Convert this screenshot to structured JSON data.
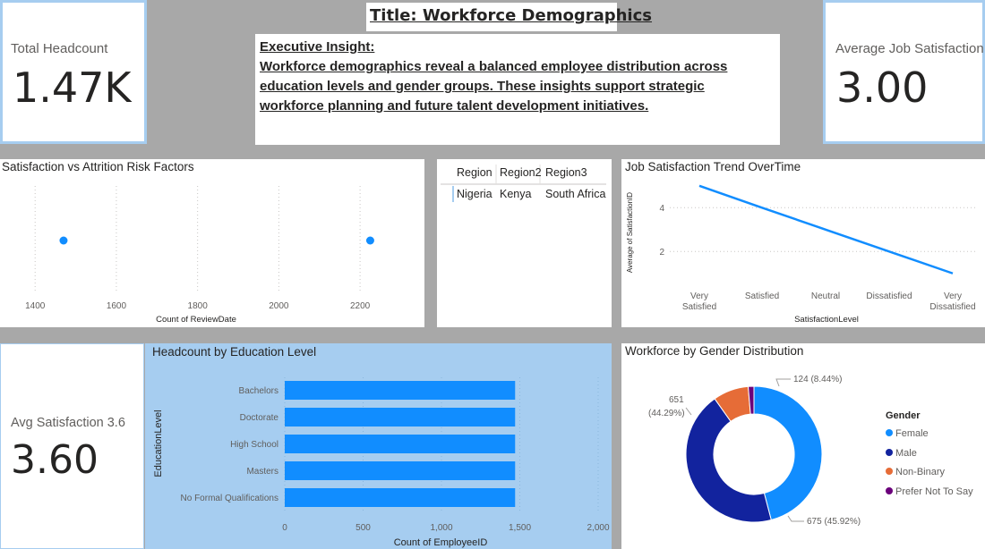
{
  "title": "Title: Workforce Demographics",
  "insight": {
    "heading": "Executive Insight:",
    "lines": [
      "Workforce demographics reveal a balanced employee distribution across",
      "education levels and gender groups. These insights support strategic",
      "workforce planning and future talent development initiatives."
    ]
  },
  "kpis": {
    "total_headcount": {
      "label": "Total Headcount",
      "value": "1.47K"
    },
    "avg_job_satisfaction": {
      "label": "Average Job Satisfaction",
      "value": "3.00"
    },
    "avg_satisfaction": {
      "label": "Avg Satisfaction 3.6",
      "value": "3.60"
    }
  },
  "region_table": {
    "headers": [
      "Region",
      "Region2",
      "Region3"
    ],
    "row": [
      "Nigeria",
      "Kenya",
      "South Africa"
    ]
  },
  "colors": {
    "primary": "#118dff",
    "dark_blue": "#12239e",
    "orange": "#e66c37",
    "purple": "#6b007b",
    "kpi_border": "#a6cdf0",
    "education_bg": "#a6cdf0"
  },
  "chart_data": [
    {
      "type": "scatter",
      "title": "Satisfaction vs Attrition Risk Factors",
      "xlabel": "Count of ReviewDate",
      "ylabel": "",
      "xticks": [
        "1400",
        "1600",
        "1800",
        "2000",
        "2200"
      ],
      "xlim": [
        1340,
        2310
      ],
      "points": [
        {
          "x": 1470
        },
        {
          "x": 2225
        }
      ],
      "grid": "vertical"
    },
    {
      "type": "line",
      "title": "Job Satisfaction Trend OverTime",
      "xlabel": "SatisfactionLevel",
      "ylabel": "Average of SatisfactionID",
      "categories": [
        [
          "Very",
          "Satisfied"
        ],
        [
          "Satisfied"
        ],
        [
          "Neutral"
        ],
        [
          "Dissatisfied"
        ],
        [
          "Very",
          "Dissatisfied"
        ]
      ],
      "values": [
        5,
        4,
        3,
        2,
        1
      ],
      "yticks": [
        "2",
        "4"
      ],
      "ylim": [
        0.5,
        5.4
      ]
    },
    {
      "type": "bar",
      "orientation": "horizontal",
      "title": "Headcount by Education Level",
      "xlabel": "Count of EmployeeID",
      "ylabel": "EducationLevel",
      "categories": [
        "Bachelors",
        "Doctorate",
        "High School",
        "Masters",
        "No Formal Qualifications"
      ],
      "values": [
        1470,
        1470,
        1470,
        1470,
        1470
      ],
      "xticks": [
        "0",
        "500",
        "1,000",
        "1,500",
        "2,000"
      ],
      "xlim": [
        0,
        2000
      ]
    },
    {
      "type": "pie",
      "donut": true,
      "title": "Workforce by Gender Distribution",
      "legend_title": "Gender",
      "legend_position": "right",
      "slices": [
        {
          "name": "Female",
          "value": 675,
          "label": "675 (45.92%)",
          "color": "#118dff"
        },
        {
          "name": "Male",
          "value": 651,
          "label": "651 (44.29%)",
          "color": "#12239e"
        },
        {
          "name": "Non-Binary",
          "value": 124,
          "label": "124 (8.44%)",
          "color": "#e66c37"
        },
        {
          "name": "Prefer Not To Say",
          "value": 20,
          "label": "",
          "color": "#6b007b"
        }
      ],
      "label_female": "675 (45.92%)",
      "label_male_count": "651",
      "label_male_pct": "(44.29%)",
      "label_nonbinary": "124 (8.44%)"
    }
  ]
}
